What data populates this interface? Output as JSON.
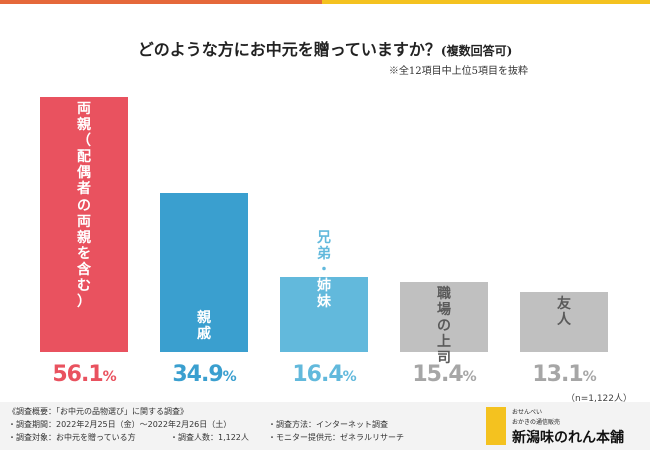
{
  "colors": {
    "red": "#e9525f",
    "blue": "#3a9fcf",
    "lightblue": "#62b9dc",
    "gray": "#c0c0c0",
    "red_text": "#e9525f",
    "blue_text": "#3a9fcf",
    "lightblue_text": "#62b9dc",
    "gray_text": "#a6a6a6"
  },
  "header": {
    "title": "どのような方にお中元を贈っていますか？",
    "title_sub": "(複数回答可)",
    "note": "※全12項目中上位5項目を抜粋"
  },
  "chart_data": {
    "type": "bar",
    "title": "どのような方にお中元を贈っていますか？(複数回答可)",
    "categories": [
      "両親（配偶者の両親を含む）",
      "親戚",
      "兄弟・姉妹",
      "職場の上司",
      "友人"
    ],
    "values": [
      56.1,
      34.9,
      16.4,
      15.4,
      13.1
    ],
    "value_labels": [
      "56.1",
      "34.9",
      "16.4",
      "15.4",
      "13.1"
    ],
    "unit": "%",
    "ylim": [
      0,
      60
    ],
    "sample": "（n=1,122人）"
  },
  "bars": [
    {
      "lines": [
        "両",
        "親",
        "（",
        "配",
        "偶",
        "者",
        "の",
        "両",
        "親",
        "を",
        "含",
        "む",
        "）"
      ],
      "color_key": "red",
      "label_style": "white",
      "label_pos": "top"
    },
    {
      "lines": [
        "親",
        "戚"
      ],
      "color_key": "blue",
      "label_style": "white",
      "label_pos": "bottom"
    },
    {
      "lines": [
        "兄",
        "弟",
        "・",
        "姉",
        "妹"
      ],
      "color_key": "lightblue",
      "label_style": "mixed",
      "label_pos": "top"
    },
    {
      "lines": [
        "職",
        "場",
        "の",
        "上",
        "司"
      ],
      "color_key": "gray",
      "label_style": "dark",
      "label_pos": "top"
    },
    {
      "lines": [
        "友",
        "人"
      ],
      "color_key": "gray",
      "label_style": "dark",
      "label_pos": "top"
    }
  ],
  "footer": {
    "overview": "《調査概要：「お中元の品物選び」に関する調査》",
    "period": "・調査期間：2022年2月25日（金）〜2022年2月26日（土）",
    "target": "・調査対象：お中元を贈っている方",
    "count": "・調査人数：1,122人",
    "method": "・調査方法：インターネット調査",
    "provider": "・モニター提供元：ゼネラルリサーチ"
  },
  "logo": {
    "line1": "おせんべい",
    "line2": "おかきの通信販売",
    "name": "新潟味のれん本舗"
  }
}
